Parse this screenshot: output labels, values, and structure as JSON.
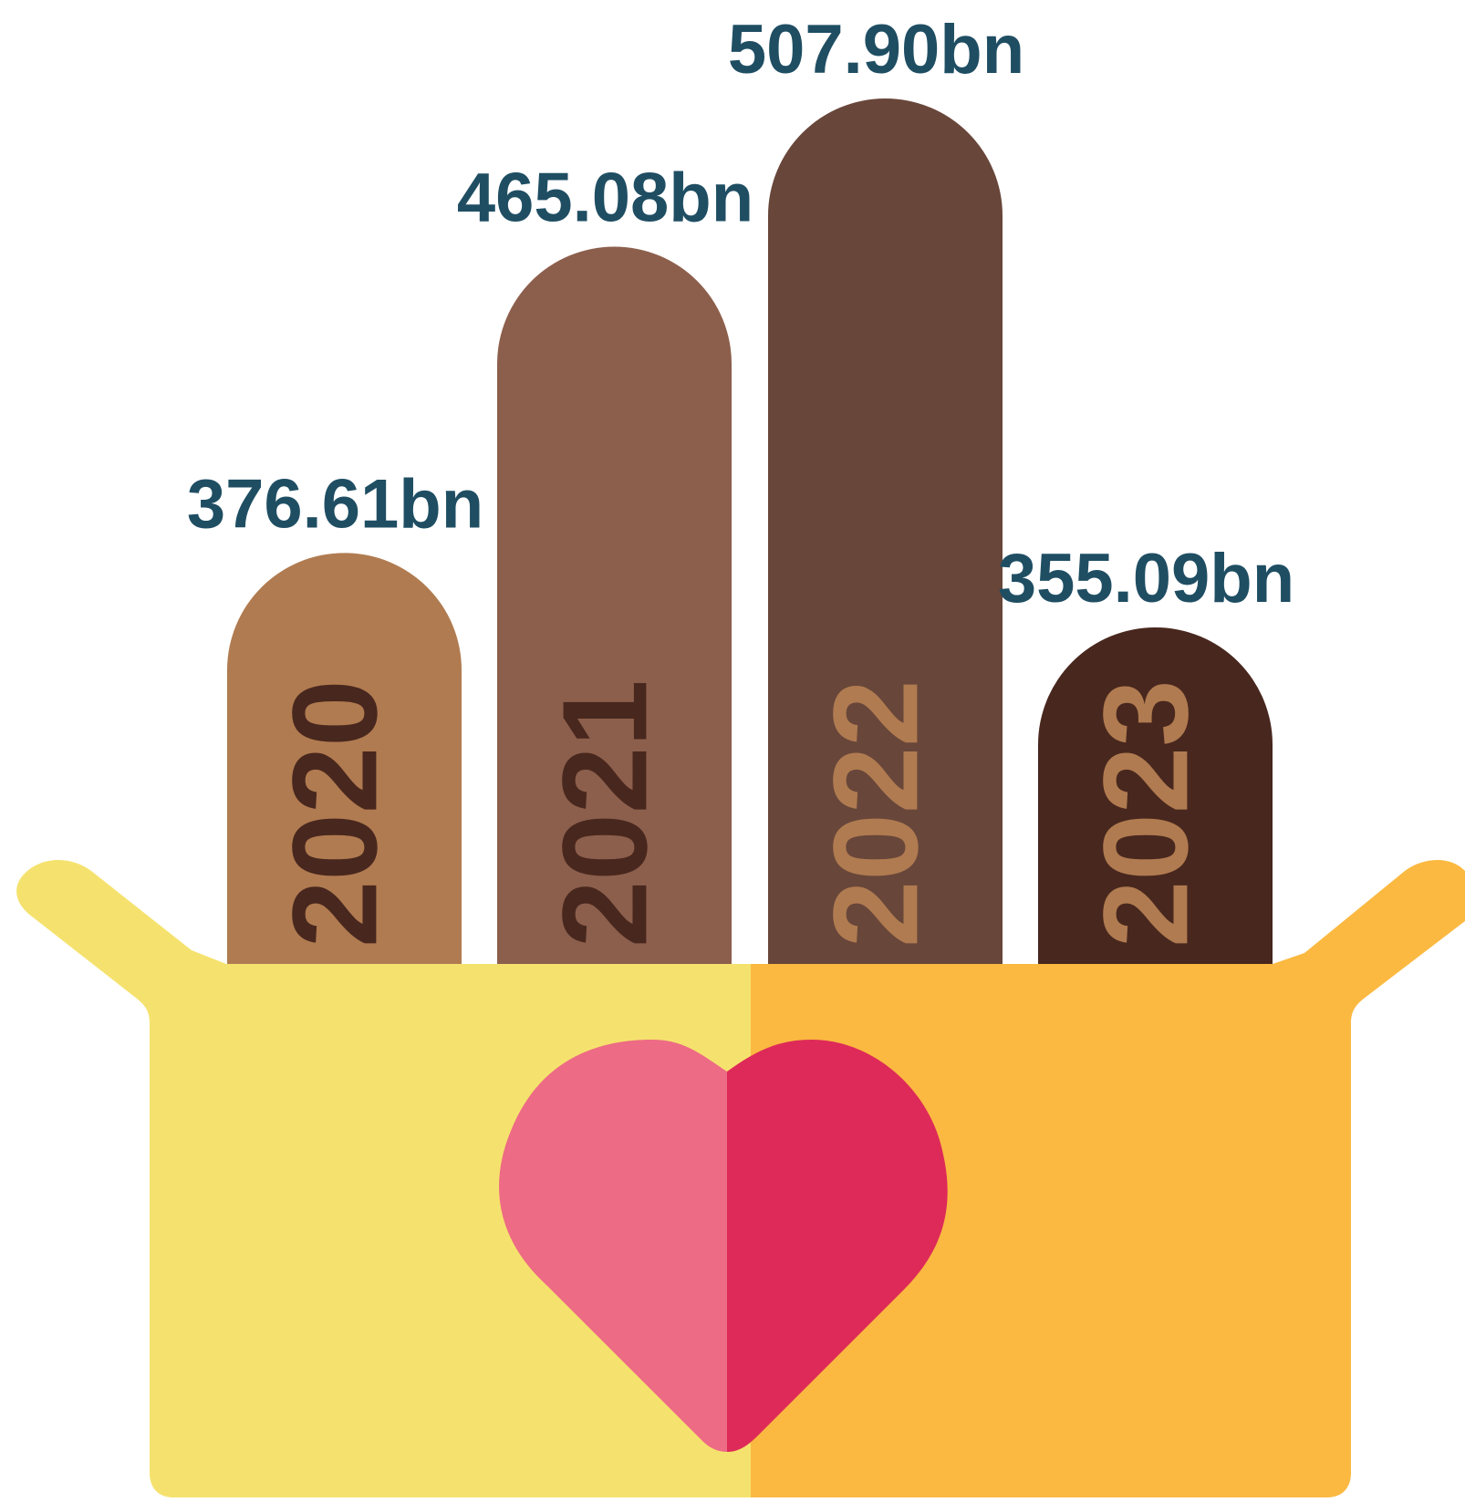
{
  "chart_data": {
    "type": "bar",
    "categories": [
      "2020",
      "2021",
      "2022",
      "2023"
    ],
    "values": [
      376.61,
      465.08,
      507.9,
      355.09
    ],
    "value_labels": [
      "376.61bn",
      "465.08bn",
      "507.90bn",
      "355.09bn"
    ],
    "colors": [
      "#b07b50",
      "#8c5f4c",
      "#68463a",
      "#48271e"
    ],
    "category_label_colors": [
      "#48271e",
      "#48271e",
      "#b07b50",
      "#b07b50"
    ],
    "value_label_color": "#1f4e63"
  }
}
